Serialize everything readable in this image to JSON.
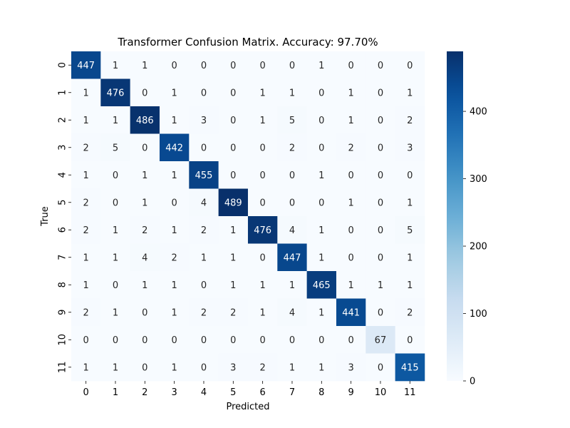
{
  "chart_data": {
    "type": "heatmap",
    "title": "Transformer Confusion Matrix. Accuracy: 97.70%",
    "xlabel": "Predicted",
    "ylabel": "True",
    "x_categories": [
      "0",
      "1",
      "2",
      "3",
      "4",
      "5",
      "6",
      "7",
      "8",
      "9",
      "10",
      "11"
    ],
    "y_categories": [
      "0",
      "1",
      "2",
      "3",
      "4",
      "5",
      "6",
      "7",
      "8",
      "9",
      "10",
      "11"
    ],
    "values": [
      [
        447,
        1,
        1,
        0,
        0,
        0,
        0,
        0,
        1,
        0,
        0,
        0
      ],
      [
        1,
        476,
        0,
        1,
        0,
        0,
        1,
        1,
        0,
        1,
        0,
        1
      ],
      [
        1,
        1,
        486,
        1,
        3,
        0,
        1,
        5,
        0,
        1,
        0,
        2
      ],
      [
        2,
        5,
        0,
        442,
        0,
        0,
        0,
        2,
        0,
        2,
        0,
        3
      ],
      [
        1,
        0,
        1,
        1,
        455,
        0,
        0,
        0,
        1,
        0,
        0,
        0
      ],
      [
        2,
        0,
        1,
        0,
        4,
        489,
        0,
        0,
        0,
        1,
        0,
        1
      ],
      [
        2,
        1,
        2,
        1,
        2,
        1,
        476,
        4,
        1,
        0,
        0,
        5
      ],
      [
        1,
        1,
        4,
        2,
        1,
        1,
        0,
        447,
        1,
        0,
        0,
        1
      ],
      [
        1,
        0,
        1,
        1,
        0,
        1,
        1,
        1,
        465,
        1,
        1,
        1
      ],
      [
        2,
        1,
        0,
        1,
        2,
        2,
        1,
        4,
        1,
        441,
        0,
        2
      ],
      [
        0,
        0,
        0,
        0,
        0,
        0,
        0,
        0,
        0,
        0,
        67,
        0
      ],
      [
        1,
        1,
        0,
        1,
        0,
        3,
        2,
        1,
        1,
        3,
        0,
        415
      ]
    ],
    "colormap": "Blues",
    "vmin": 0,
    "vmax": 489,
    "colorbar_ticks": [
      0,
      100,
      200,
      300,
      400
    ],
    "colorbar_tick_labels": [
      "0",
      "100",
      "200",
      "300",
      "400"
    ]
  }
}
